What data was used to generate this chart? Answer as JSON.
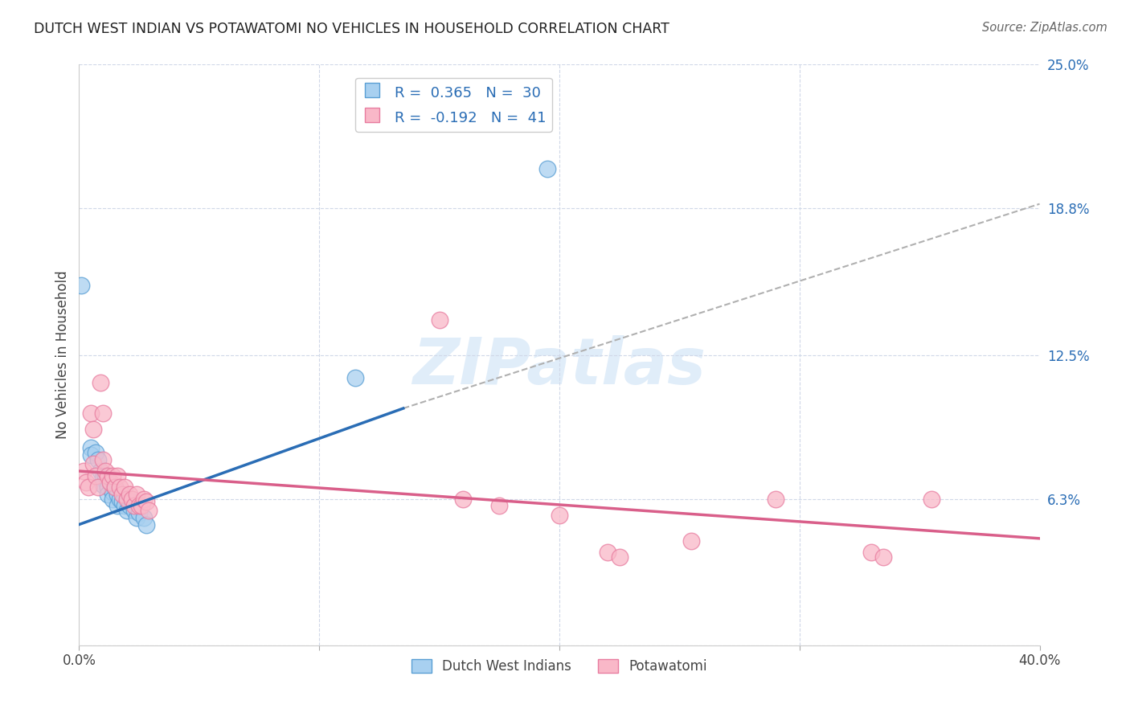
{
  "title": "DUTCH WEST INDIAN VS POTAWATOMI NO VEHICLES IN HOUSEHOLD CORRELATION CHART",
  "source": "Source: ZipAtlas.com",
  "ylabel": "No Vehicles in Household",
  "xlim": [
    0.0,
    0.4
  ],
  "ylim": [
    0.0,
    0.25
  ],
  "blue_R": 0.365,
  "blue_N": 30,
  "pink_R": -0.192,
  "pink_N": 41,
  "blue_color": "#a8d0f0",
  "pink_color": "#f9b8c8",
  "blue_edge_color": "#5a9fd4",
  "pink_edge_color": "#e87da0",
  "blue_line_color": "#2a6db5",
  "pink_line_color": "#d95f8a",
  "dashed_line_color": "#b0b0b0",
  "legend_label_blue": "Dutch West Indians",
  "legend_label_pink": "Potawatomi",
  "watermark": "ZIPatlas",
  "blue_dots": [
    [
      0.001,
      0.155
    ],
    [
      0.005,
      0.085
    ],
    [
      0.005,
      0.082
    ],
    [
      0.007,
      0.083
    ],
    [
      0.008,
      0.08
    ],
    [
      0.009,
      0.075
    ],
    [
      0.01,
      0.072
    ],
    [
      0.01,
      0.069
    ],
    [
      0.011,
      0.073
    ],
    [
      0.012,
      0.068
    ],
    [
      0.012,
      0.065
    ],
    [
      0.013,
      0.07
    ],
    [
      0.014,
      0.066
    ],
    [
      0.014,
      0.063
    ],
    [
      0.015,
      0.068
    ],
    [
      0.016,
      0.065
    ],
    [
      0.016,
      0.06
    ],
    [
      0.017,
      0.063
    ],
    [
      0.018,
      0.062
    ],
    [
      0.019,
      0.06
    ],
    [
      0.02,
      0.058
    ],
    [
      0.021,
      0.06
    ],
    [
      0.022,
      0.062
    ],
    [
      0.023,
      0.058
    ],
    [
      0.024,
      0.055
    ],
    [
      0.025,
      0.057
    ],
    [
      0.027,
      0.055
    ],
    [
      0.028,
      0.052
    ],
    [
      0.115,
      0.115
    ],
    [
      0.195,
      0.205
    ]
  ],
  "pink_dots": [
    [
      0.002,
      0.075
    ],
    [
      0.003,
      0.07
    ],
    [
      0.004,
      0.068
    ],
    [
      0.005,
      0.1
    ],
    [
      0.006,
      0.093
    ],
    [
      0.006,
      0.078
    ],
    [
      0.007,
      0.073
    ],
    [
      0.008,
      0.068
    ],
    [
      0.009,
      0.113
    ],
    [
      0.01,
      0.1
    ],
    [
      0.01,
      0.08
    ],
    [
      0.011,
      0.075
    ],
    [
      0.012,
      0.073
    ],
    [
      0.013,
      0.07
    ],
    [
      0.014,
      0.073
    ],
    [
      0.015,
      0.068
    ],
    [
      0.016,
      0.073
    ],
    [
      0.017,
      0.068
    ],
    [
      0.018,
      0.065
    ],
    [
      0.019,
      0.068
    ],
    [
      0.02,
      0.063
    ],
    [
      0.021,
      0.065
    ],
    [
      0.022,
      0.063
    ],
    [
      0.023,
      0.06
    ],
    [
      0.024,
      0.065
    ],
    [
      0.025,
      0.06
    ],
    [
      0.026,
      0.06
    ],
    [
      0.027,
      0.063
    ],
    [
      0.028,
      0.062
    ],
    [
      0.029,
      0.058
    ],
    [
      0.15,
      0.14
    ],
    [
      0.16,
      0.063
    ],
    [
      0.175,
      0.06
    ],
    [
      0.2,
      0.056
    ],
    [
      0.22,
      0.04
    ],
    [
      0.225,
      0.038
    ],
    [
      0.255,
      0.045
    ],
    [
      0.29,
      0.063
    ],
    [
      0.33,
      0.04
    ],
    [
      0.335,
      0.038
    ],
    [
      0.355,
      0.063
    ]
  ],
  "blue_line_solid": [
    [
      0.0,
      0.052
    ],
    [
      0.135,
      0.102
    ]
  ],
  "blue_line_dashed": [
    [
      0.135,
      0.102
    ],
    [
      0.4,
      0.19
    ]
  ],
  "pink_line": [
    [
      0.0,
      0.075
    ],
    [
      0.4,
      0.046
    ]
  ],
  "figsize": [
    14.06,
    8.92
  ],
  "dpi": 100,
  "ytick_vals": [
    0.0,
    0.063,
    0.125,
    0.188,
    0.25
  ],
  "ytick_labels": [
    "",
    "6.3%",
    "12.5%",
    "18.8%",
    "25.0%"
  ],
  "xtick_vals": [
    0.0,
    0.1,
    0.2,
    0.3,
    0.4
  ],
  "xtick_labels": [
    "0.0%",
    "",
    "",
    "",
    "40.0%"
  ]
}
